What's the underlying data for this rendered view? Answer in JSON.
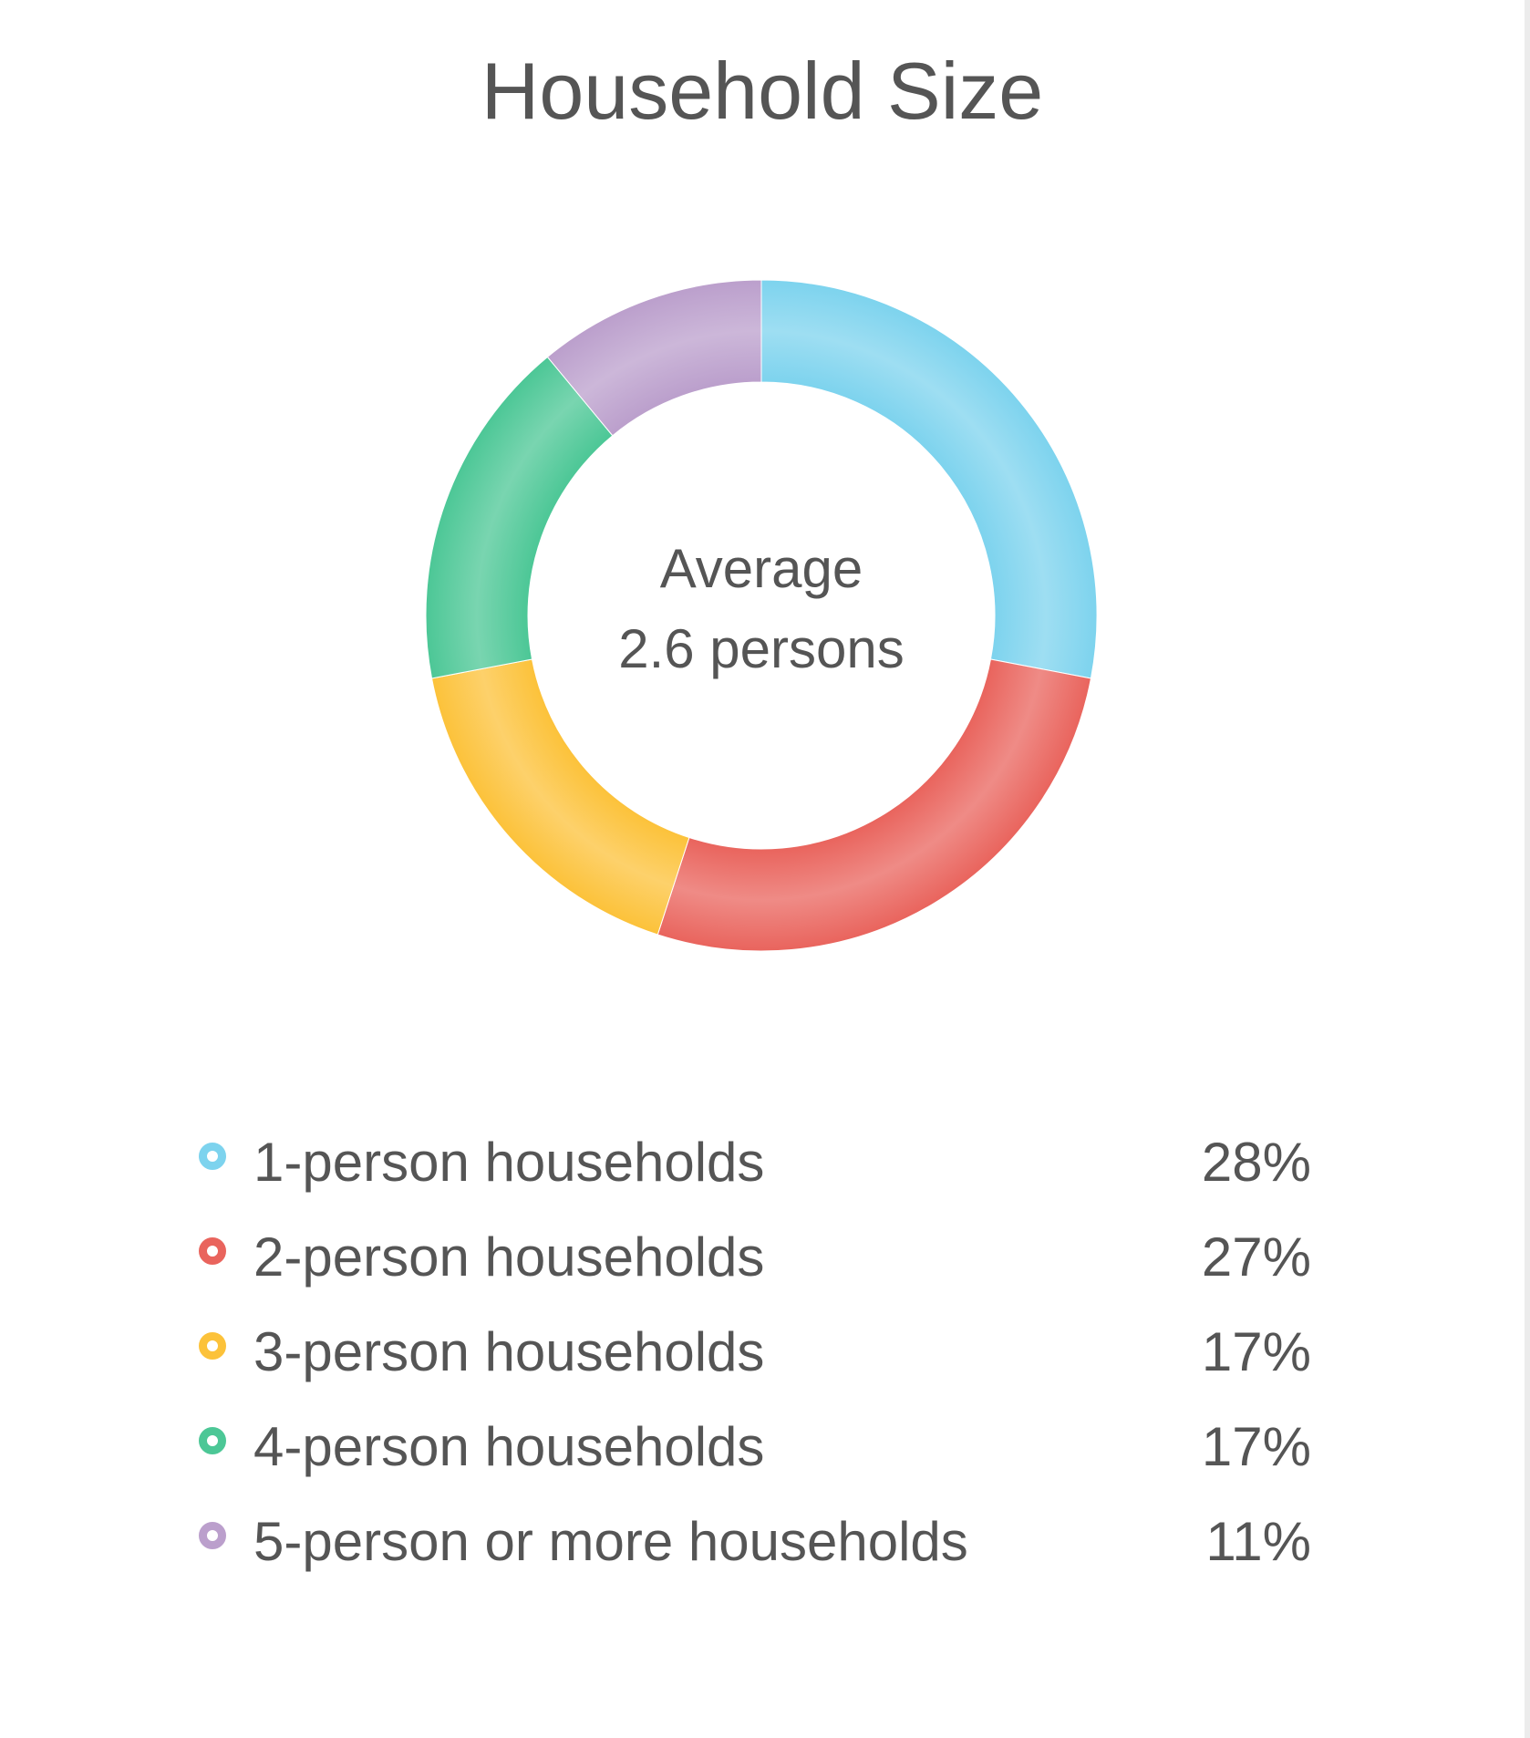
{
  "chart_data": {
    "type": "pie",
    "title": "Household Size",
    "center_text": [
      "Average",
      "2.6 persons"
    ],
    "categories": [
      "1-person households",
      "2-person households",
      "3-person households",
      "4-person households",
      "5-person or more households"
    ],
    "values": [
      28,
      27,
      17,
      17,
      11
    ],
    "value_labels": [
      "28%",
      "27%",
      "17%",
      "17%",
      "11%"
    ],
    "colors": [
      "#7dd3ee",
      "#e9645d",
      "#fcc23a",
      "#4cc796",
      "#bb9fcc"
    ],
    "legend": "bottom"
  }
}
